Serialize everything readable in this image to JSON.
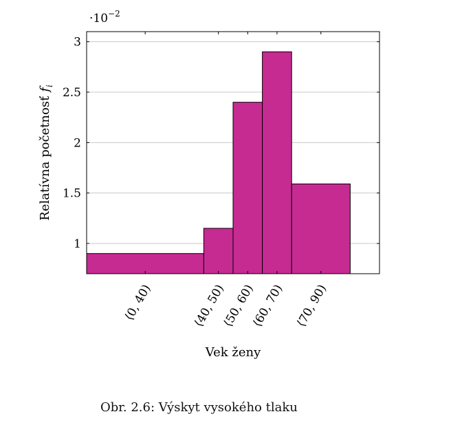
{
  "chart_data": {
    "type": "bar",
    "title": "",
    "xlabel": "Vek ženy",
    "ylabel_text": "Relatívna početnosť",
    "ylabel_var": "f",
    "ylabel_sub": "i",
    "y_multiplier_base": "·10",
    "y_multiplier_exp": "−2",
    "x_axis_range": [
      0,
      100
    ],
    "ylim": [
      0.7,
      3.1
    ],
    "yticks": [
      1,
      1.5,
      2,
      2.5,
      3
    ],
    "ytick_labels": [
      "1",
      "1.5",
      "2",
      "2.5",
      "3"
    ],
    "grid": "horizontal",
    "bar_color": "#c62b92",
    "bins": [
      {
        "label": "⟨0, 40)",
        "from": 0,
        "to": 40,
        "value": 0.9
      },
      {
        "label": "⟨40, 50)",
        "from": 40,
        "to": 50,
        "value": 1.15
      },
      {
        "label": "⟨50, 60)",
        "from": 50,
        "to": 60,
        "value": 2.4
      },
      {
        "label": "⟨60, 70)",
        "from": 60,
        "to": 70,
        "value": 2.9
      },
      {
        "label": "⟨70, 90)",
        "from": 70,
        "to": 90,
        "value": 1.59
      }
    ]
  },
  "caption": "Obr. 2.6: Výskyt vysokého tlaku"
}
